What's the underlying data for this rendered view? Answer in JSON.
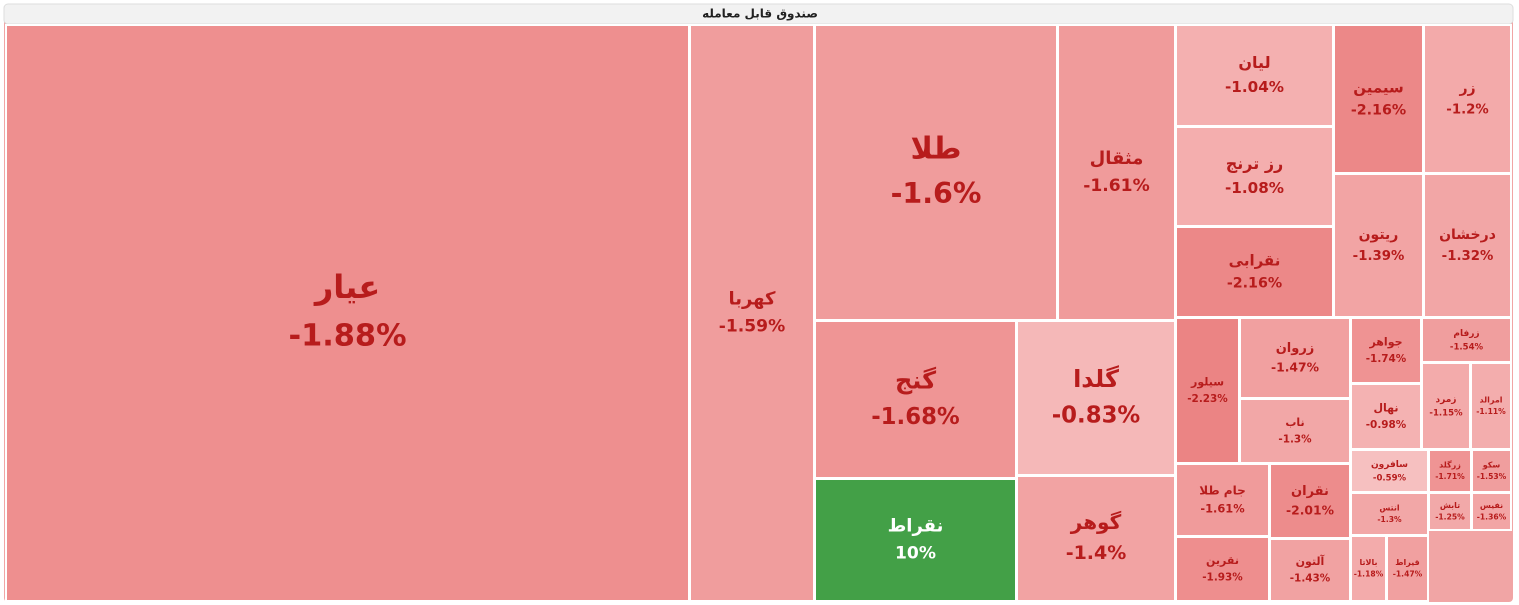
{
  "chart_data": {
    "type": "treemap",
    "title": "صندوق قابل معامله",
    "tiles": [
      {
        "name": "عیار",
        "value": -1.88,
        "value_label": "-1.88%",
        "color": "#ee8f8f"
      },
      {
        "name": "کهربا",
        "value": -1.59,
        "value_label": "-1.59%",
        "color": "#f09d9d"
      },
      {
        "name": "طلا",
        "value": -1.6,
        "value_label": "-1.6%",
        "color": "#f09c9c"
      },
      {
        "name": "مثقال",
        "value": -1.61,
        "value_label": "-1.61%",
        "color": "#f09b9b"
      },
      {
        "name": "لیان",
        "value": -1.04,
        "value_label": "-1.04%",
        "color": "#f4b0b0"
      },
      {
        "name": "رز ترنج",
        "value": -1.08,
        "value_label": "-1.08%",
        "color": "#f4aeae"
      },
      {
        "name": "نقرابی",
        "value": -2.16,
        "value_label": "-2.16%",
        "color": "#ec8888"
      },
      {
        "name": "سیمین",
        "value": -2.16,
        "value_label": "-2.16%",
        "color": "#ec8888"
      },
      {
        "name": "زر",
        "value": -1.2,
        "value_label": "-1.2%",
        "color": "#f3aaaa"
      },
      {
        "name": "ریتون",
        "value": -1.39,
        "value_label": "-1.39%",
        "color": "#f2a4a4"
      },
      {
        "name": "درخشان",
        "value": -1.32,
        "value_label": "-1.32%",
        "color": "#f2a6a6"
      },
      {
        "name": "گنج",
        "value": -1.68,
        "value_label": "-1.68%",
        "color": "#ef9595"
      },
      {
        "name": "گلدا",
        "value": -0.83,
        "value_label": "-0.83%",
        "color": "#f5b8b8"
      },
      {
        "name": "نقراط",
        "value": 10,
        "value_label": "10%",
        "color": "#43a047"
      },
      {
        "name": "گوهر",
        "value": -1.4,
        "value_label": "-1.4%",
        "color": "#f2a3a3"
      },
      {
        "name": "سیلور",
        "value": -2.23,
        "value_label": "-2.23%",
        "color": "#eb8484"
      },
      {
        "name": "زروان",
        "value": -1.47,
        "value_label": "-1.47%",
        "color": "#f1a0a0"
      },
      {
        "name": "ناب",
        "value": -1.3,
        "value_label": "-1.3%",
        "color": "#f2a7a7"
      },
      {
        "name": "جواهر",
        "value": -1.74,
        "value_label": "-1.74%",
        "color": "#ef9393"
      },
      {
        "name": "زرفام",
        "value": -1.54,
        "value_label": "-1.54%",
        "color": "#f09e9e"
      },
      {
        "name": "نهال",
        "value": -0.98,
        "value_label": "-0.98%",
        "color": "#f4b2b2"
      },
      {
        "name": "زمرد",
        "value": -1.15,
        "value_label": "-1.15%",
        "color": "#f3abab"
      },
      {
        "name": "امرالد",
        "value": -1.11,
        "value_label": "-1.11%",
        "color": "#f3adad"
      },
      {
        "name": "جام طلا",
        "value": -1.61,
        "value_label": "-1.61%",
        "color": "#f09b9b"
      },
      {
        "name": "نقران",
        "value": -2.01,
        "value_label": "-2.01%",
        "color": "#ed8c8c"
      },
      {
        "name": "نقرین",
        "value": -1.93,
        "value_label": "-1.93%",
        "color": "#ee8e8e"
      },
      {
        "name": "آلتون",
        "value": -1.43,
        "value_label": "-1.43%",
        "color": "#f1a2a2"
      },
      {
        "name": "سافرون",
        "value": -0.59,
        "value_label": "-0.59%",
        "color": "#f6c0c0"
      },
      {
        "name": "زرگلد",
        "value": -1.71,
        "value_label": "-1.71%",
        "color": "#ef9494"
      },
      {
        "name": "سکو",
        "value": -1.53,
        "value_label": "-1.53%",
        "color": "#f09e9e"
      },
      {
        "name": "انتس",
        "value": -1.3,
        "value_label": "-1.3%",
        "color": "#f2a7a7"
      },
      {
        "name": "تابش",
        "value": -1.25,
        "value_label": "-1.25%",
        "color": "#f2a9a9"
      },
      {
        "name": "نفیس",
        "value": -1.36,
        "value_label": "-1.36%",
        "color": "#f2a5a5"
      },
      {
        "name": "بالاتا",
        "value": -1.18,
        "value_label": "-1.18%",
        "color": "#f3abab"
      },
      {
        "name": "قیراط",
        "value": -1.47,
        "value_label": "-1.47%",
        "color": "#f1a0a0"
      }
    ]
  }
}
